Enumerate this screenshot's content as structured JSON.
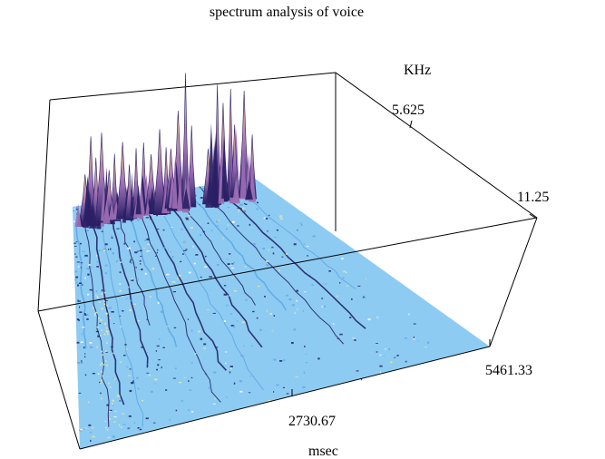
{
  "chart_data": {
    "type": "surface3d",
    "title": "spectrum  analysis of voice",
    "x_axis": {
      "label": "msec",
      "ticks": [
        "2730.67",
        "5461.33"
      ],
      "range": [
        0,
        5461.33
      ]
    },
    "y_axis": {
      "label": "KHz",
      "ticks": [
        "5.625",
        "11.25"
      ],
      "range": [
        0,
        11.25
      ]
    },
    "z_axis": {
      "label": ""
    },
    "grid": false,
    "bounding_box": true,
    "colors": {
      "floor": "#8ecbf2",
      "floor_dark": "#5aa7e3",
      "streak": "#1b1b5e",
      "speck": "#f3e7a0",
      "peak_low": "#2a1f66",
      "peak_mid": "#9c6fb4",
      "peak_high": "#f7c78a"
    },
    "peaks": [
      {
        "t": 0.08,
        "f": 0.05,
        "h": 0.55
      },
      {
        "t": 0.12,
        "f": 0.04,
        "h": 0.95
      },
      {
        "t": 0.15,
        "f": 0.06,
        "h": 0.75
      },
      {
        "t": 0.19,
        "f": 0.05,
        "h": 1.0
      },
      {
        "t": 0.24,
        "f": 0.05,
        "h": 0.55
      },
      {
        "t": 0.28,
        "f": 0.04,
        "h": 0.7
      },
      {
        "t": 0.33,
        "f": 0.05,
        "h": 0.85
      },
      {
        "t": 0.37,
        "f": 0.06,
        "h": 0.6
      },
      {
        "t": 0.42,
        "f": 0.05,
        "h": 0.75
      },
      {
        "t": 0.47,
        "f": 0.05,
        "h": 0.8
      },
      {
        "t": 0.52,
        "f": 0.05,
        "h": 0.65
      },
      {
        "t": 0.57,
        "f": 0.06,
        "h": 0.95
      },
      {
        "t": 0.62,
        "f": 0.05,
        "h": 0.7
      },
      {
        "t": 0.66,
        "f": 0.04,
        "h": 0.65
      },
      {
        "t": 0.7,
        "f": 0.05,
        "h": 1.1
      },
      {
        "t": 0.74,
        "f": 0.06,
        "h": 1.55
      },
      {
        "t": 0.79,
        "f": 0.05,
        "h": 0.9
      },
      {
        "t": 0.9,
        "f": 0.05,
        "h": 0.6
      },
      {
        "t": 0.95,
        "f": 0.06,
        "h": 1.35
      },
      {
        "t": 1.0,
        "f": 0.05,
        "h": 1.1
      },
      {
        "t": 1.05,
        "f": 0.05,
        "h": 1.25
      },
      {
        "t": 1.09,
        "f": 0.04,
        "h": 0.8
      },
      {
        "t": 1.14,
        "f": 0.05,
        "h": 1.2
      },
      {
        "t": 1.18,
        "f": 0.06,
        "h": 0.7
      }
    ]
  }
}
